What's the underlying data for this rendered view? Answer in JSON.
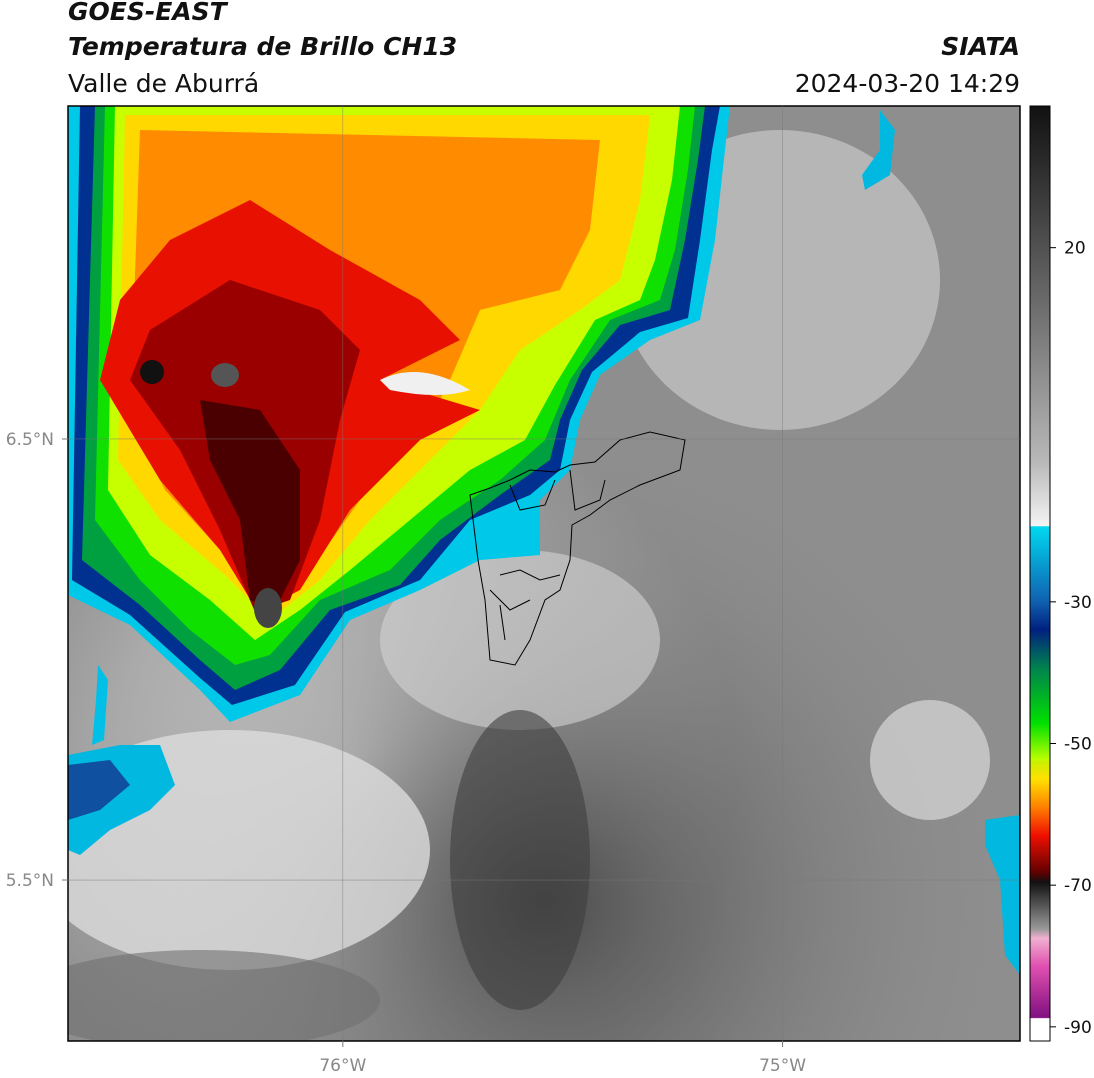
{
  "map": {
    "title": "GOES-EAST",
    "subtitle": "Temperatura de Brillo CH13",
    "source": "SIATA",
    "region": "Valle de Aburrá",
    "datetime": "2024-03-20 14:29",
    "xlim": [
      -76.625,
      -74.46
    ],
    "ylim": [
      5.135,
      7.255
    ],
    "xticks": [
      {
        "value": -76,
        "label": "76°W"
      },
      {
        "value": -75,
        "label": "75°W"
      }
    ],
    "yticks": [
      {
        "value": 6.5,
        "label": "6.5°N"
      },
      {
        "value": 5.5,
        "label": "5.5°N"
      }
    ],
    "colorbar": {
      "lim": [
        -92,
        40
      ],
      "ticks": [
        20,
        -30,
        -50,
        -70,
        -90
      ]
    }
  }
}
